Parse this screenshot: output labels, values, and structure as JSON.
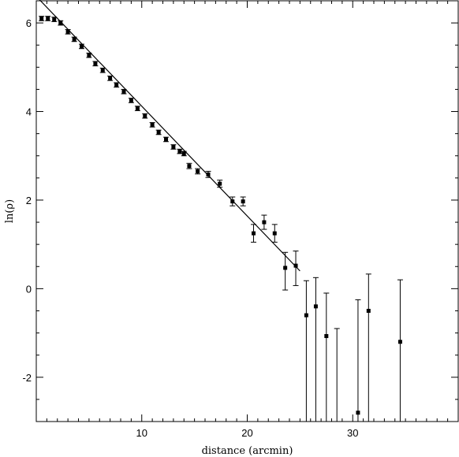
{
  "chart_data": {
    "type": "scatter",
    "title": "",
    "xlabel": "distance (arcmin)",
    "ylabel": "ln(ρ)",
    "xlim": [
      0,
      40
    ],
    "ylim": [
      -3,
      6.5
    ],
    "xticks": [
      10,
      20,
      30
    ],
    "yticks": [
      -2,
      0,
      2,
      4,
      6
    ],
    "grid": false,
    "series": [
      {
        "x": [
          0.5,
          1.1,
          1.7,
          2.3,
          3.0,
          3.6,
          4.3,
          5.0,
          5.6,
          6.3,
          7.0,
          7.6,
          8.3,
          9.0,
          9.6,
          10.3,
          11.0,
          11.6,
          12.3,
          13.0,
          13.6,
          14.0,
          14.5,
          15.3,
          16.3,
          17.4,
          18.6,
          19.6,
          20.6,
          21.6,
          22.6,
          23.6,
          24.6,
          25.6,
          26.5,
          27.5,
          30.5,
          31.5,
          34.5
        ],
        "y": [
          6.1,
          6.1,
          6.08,
          6.0,
          5.8,
          5.63,
          5.47,
          5.27,
          5.08,
          4.93,
          4.75,
          4.6,
          4.45,
          4.25,
          4.07,
          3.9,
          3.7,
          3.53,
          3.37,
          3.2,
          3.1,
          3.05,
          2.77,
          2.65,
          2.58,
          2.37,
          1.97,
          1.97,
          1.25,
          1.5,
          1.25,
          0.47,
          0.52,
          -0.6,
          -0.4,
          -1.07,
          -2.8,
          -0.5,
          -1.2
        ],
        "err_low": [
          0.05,
          0.05,
          0.05,
          0.05,
          0.05,
          0.05,
          0.05,
          0.05,
          0.05,
          0.05,
          0.05,
          0.05,
          0.05,
          0.05,
          0.05,
          0.05,
          0.05,
          0.05,
          0.05,
          0.05,
          0.05,
          0.05,
          0.06,
          0.06,
          0.07,
          0.08,
          0.1,
          0.1,
          0.2,
          0.16,
          0.2,
          0.5,
          0.45,
          3.0,
          3.0,
          3.0,
          3.0,
          3.0,
          3.0
        ],
        "err_high": [
          0.05,
          0.05,
          0.05,
          0.05,
          0.05,
          0.05,
          0.05,
          0.05,
          0.05,
          0.05,
          0.05,
          0.05,
          0.05,
          0.05,
          0.05,
          0.05,
          0.05,
          0.05,
          0.05,
          0.05,
          0.05,
          0.05,
          0.06,
          0.06,
          0.07,
          0.08,
          0.1,
          0.1,
          0.2,
          0.16,
          0.2,
          0.35,
          0.33,
          0.78,
          0.65,
          0.97,
          2.55,
          0.83,
          1.4
        ]
      }
    ],
    "lone_error_bars": [
      {
        "x": 28.5,
        "y_high": -0.9
      }
    ],
    "fit_line": {
      "x": [
        0,
        25.0
      ],
      "y": [
        6.6,
        0.4
      ]
    }
  }
}
